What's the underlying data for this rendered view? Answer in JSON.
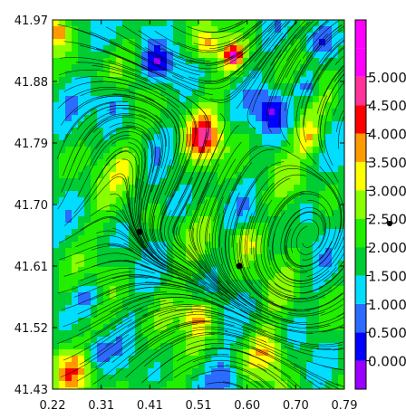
{
  "chart_data": {
    "type": "heatmap",
    "title": "",
    "xlabel": "",
    "ylabel": "",
    "x_ticks": [
      "0.22",
      "0.31",
      "0.41",
      "0.51",
      "0.60",
      "0.70",
      "0.79"
    ],
    "y_ticks": [
      "41.43",
      "41.52",
      "41.61",
      "41.70",
      "41.79",
      "41.88",
      "41.97"
    ],
    "xlim": [
      0.22,
      0.79
    ],
    "ylim": [
      41.43,
      41.97
    ],
    "overlay": "streamlines",
    "colorbar": {
      "ticks": [
        "0.000",
        "0.500",
        "1.000",
        "1.500",
        "2.000",
        "2.500",
        "3.000",
        "3.500",
        "4.000",
        "4.500",
        "5.000"
      ],
      "range": [
        -0.5,
        6.0
      ],
      "colors": [
        "#9900ff",
        "#0000ff",
        "#2b6bff",
        "#00ddff",
        "#00cc33",
        "#22ee00",
        "#88ff00",
        "#ffff00",
        "#ff9900",
        "#ff0000",
        "#ff3399",
        "#ff00ff",
        "#ff00ff"
      ]
    },
    "markers": [
      {
        "x": 0.39,
        "y": 41.66
      },
      {
        "x": 0.585,
        "y": 41.61
      }
    ]
  }
}
